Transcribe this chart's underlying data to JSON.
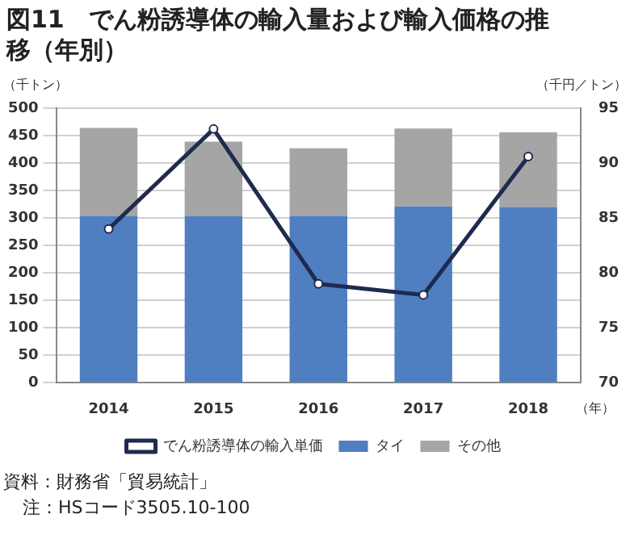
{
  "chart_data": {
    "type": "bar",
    "title": "図11　でん粉誘導体の輸入量および輸入価格の推移（年別）",
    "xlabel": "（年）",
    "ylabel": "（千トン）",
    "y2label": "（千円／トン）",
    "categories": [
      "2014",
      "2015",
      "2016",
      "2017",
      "2018"
    ],
    "stacked": true,
    "series": [
      {
        "name": "タイ",
        "color": "#4f7fc0",
        "values": [
          304,
          303,
          304,
          321,
          320
        ]
      },
      {
        "name": "その他",
        "color": "#a5a5a5",
        "values": [
          160,
          136,
          123,
          142,
          136
        ]
      },
      {
        "name": "でん粉誘導体の輸入単価",
        "type": "line",
        "axis": "y2",
        "color": "#1f2a4f",
        "marker": "circle",
        "values": [
          84.0,
          93.1,
          79.0,
          78.0,
          90.6
        ]
      }
    ],
    "ylim": [
      0,
      500
    ],
    "yticks": [
      0,
      50,
      100,
      150,
      200,
      250,
      300,
      350,
      400,
      450,
      500
    ],
    "y2lim": [
      70,
      95
    ],
    "y2ticks": [
      70,
      75,
      80,
      85,
      90,
      95
    ],
    "grid": "y",
    "legend": "bottom",
    "annotations": [
      "資料：財務省「貿易統計」",
      "注：HSコード3505.10-100"
    ]
  }
}
